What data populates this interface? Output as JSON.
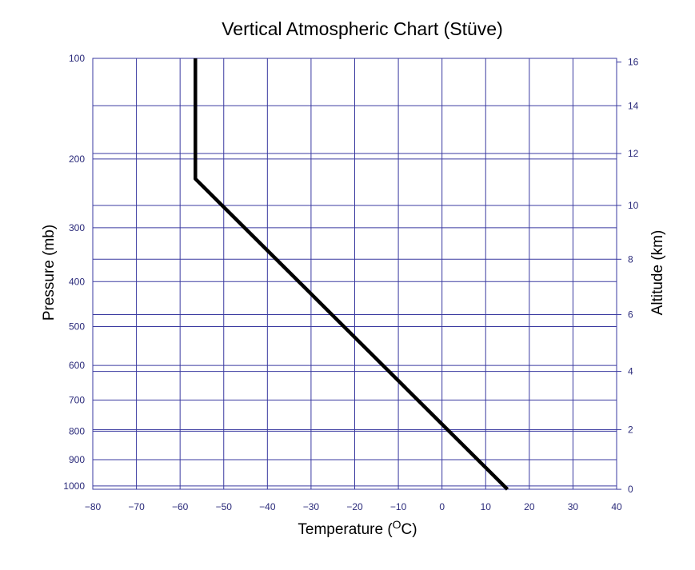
{
  "chart_data": {
    "type": "line",
    "title": "Vertical Atmospheric Chart (Stüve)",
    "xlabel": "Temperature (",
    "xlabel_unit_super": "O",
    "xlabel_unit_tail": "C)",
    "ylabel_left": "Pressure (mb)",
    "ylabel_right": "Altitude (km)",
    "xlim": [
      -80,
      40
    ],
    "ylim_pressure": [
      1013,
      100
    ],
    "x_ticks": [
      "−80",
      "−70",
      "−60",
      "−50",
      "−40",
      "−30",
      "−20",
      "−10",
      "0",
      "10",
      "20",
      "30",
      "40"
    ],
    "x_tick_values": [
      -80,
      -70,
      -60,
      -50,
      -40,
      -30,
      -20,
      -10,
      0,
      10,
      20,
      30,
      40
    ],
    "pressure_ticks": [
      "100",
      "200",
      "300",
      "400",
      "500",
      "600",
      "700",
      "800",
      "900",
      "1000"
    ],
    "pressure_tick_values": [
      100,
      200,
      300,
      400,
      500,
      600,
      700,
      800,
      900,
      1000
    ],
    "altitude_ticks": [
      "0",
      "2",
      "4",
      "6",
      "8",
      "10",
      "12",
      "14",
      "16"
    ],
    "altitude_tick_values": [
      0,
      2,
      4,
      6,
      8,
      10,
      12,
      14,
      16
    ],
    "grid": true,
    "series": [
      {
        "points": [
          {
            "temperature": 15,
            "pressure": 1013
          },
          {
            "temperature": -56.5,
            "pressure": 226
          },
          {
            "temperature": -56.5,
            "pressure": 100
          }
        ]
      }
    ]
  }
}
